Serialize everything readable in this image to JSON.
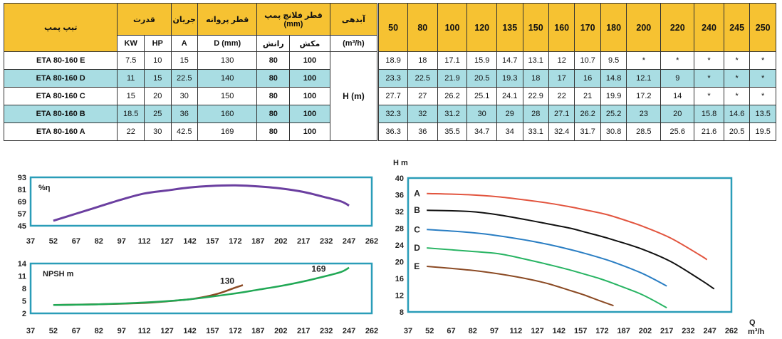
{
  "table": {
    "header": {
      "model": "تیپ پمپ",
      "power": "قدرت",
      "current": "جریان",
      "impeller": "قطر پروانه",
      "flange": "قطر فلانچ پمپ",
      "flange_unit": "(mm)",
      "flow": "آبدهی",
      "kw": "KW",
      "hp": "HP",
      "amp": "A",
      "dmm": "D (mm)",
      "discharge": "رانش",
      "suction": "مکش",
      "flow_unit": "(m³/h)",
      "h_label": "H (m)"
    },
    "flows": [
      "50",
      "80",
      "100",
      "120",
      "135",
      "150",
      "160",
      "170",
      "180",
      "200",
      "220",
      "240",
      "245",
      "250"
    ],
    "rows": [
      {
        "model": "ETA 80-160 E",
        "kw": "7.5",
        "hp": "10",
        "a": "15",
        "d": "130",
        "disc": "80",
        "suct": "100",
        "h": [
          "18.9",
          "18",
          "17.1",
          "15.9",
          "14.7",
          "13.1",
          "12",
          "10.7",
          "9.5",
          "*",
          "*",
          "*",
          "*",
          "*"
        ]
      },
      {
        "model": "ETA 80-160 D",
        "kw": "11",
        "hp": "15",
        "a": "22.5",
        "d": "140",
        "disc": "80",
        "suct": "100",
        "h": [
          "23.3",
          "22.5",
          "21.9",
          "20.5",
          "19.3",
          "18",
          "17",
          "16",
          "14.8",
          "12.1",
          "9",
          "*",
          "*",
          "*"
        ]
      },
      {
        "model": "ETA 80-160 C",
        "kw": "15",
        "hp": "20",
        "a": "30",
        "d": "150",
        "disc": "80",
        "suct": "100",
        "h": [
          "27.7",
          "27",
          "26.2",
          "25.1",
          "24.1",
          "22.9",
          "22",
          "21",
          "19.9",
          "17.2",
          "14",
          "*",
          "*",
          "*"
        ]
      },
      {
        "model": "ETA 80-160 B",
        "kw": "18.5",
        "hp": "25",
        "a": "36",
        "d": "160",
        "disc": "80",
        "suct": "100",
        "h": [
          "32.3",
          "32",
          "31.2",
          "30",
          "29",
          "28",
          "27.1",
          "26.2",
          "25.2",
          "23",
          "20",
          "15.8",
          "14.6",
          "13.5"
        ]
      },
      {
        "model": "ETA 80-160 A",
        "kw": "22",
        "hp": "30",
        "a": "42.5",
        "d": "169",
        "disc": "80",
        "suct": "100",
        "h": [
          "36.3",
          "36",
          "35.5",
          "34.7",
          "34",
          "33.1",
          "32.4",
          "31.7",
          "30.8",
          "28.5",
          "25.6",
          "21.6",
          "20.5",
          "19.5"
        ]
      }
    ]
  },
  "chart_data": [
    {
      "type": "line",
      "ylabel": "%η",
      "xlim": [
        37,
        262
      ],
      "ylim": [
        45,
        93
      ],
      "xticks": [
        "37",
        "52",
        "67",
        "82",
        "97",
        "112",
        "127",
        "142",
        "157",
        "172",
        "187",
        "202",
        "217",
        "232",
        "247",
        "262"
      ],
      "yticks": [
        "45",
        "57",
        "69",
        "81",
        "93"
      ],
      "series": [
        {
          "color": "#6b3fa0",
          "x": [
            52,
            67,
            82,
            97,
            112,
            127,
            142,
            157,
            172,
            187,
            202,
            217,
            232,
            242,
            247
          ],
          "y": [
            50,
            57,
            64,
            71,
            77,
            80,
            83,
            84.5,
            85,
            84,
            82,
            78.5,
            73,
            69,
            65
          ]
        }
      ]
    },
    {
      "type": "line",
      "ylabel": "NPSH m",
      "xlim": [
        37,
        262
      ],
      "ylim": [
        2,
        14
      ],
      "xticks": [
        "37",
        "52",
        "67",
        "82",
        "97",
        "112",
        "127",
        "142",
        "157",
        "172",
        "187",
        "202",
        "217",
        "232",
        "247",
        "262"
      ],
      "yticks": [
        "2",
        "5",
        "8",
        "11",
        "14"
      ],
      "series": [
        {
          "name": "130",
          "color": "#8b4a24",
          "x": [
            52,
            82,
            112,
            127,
            142,
            152,
            162,
            172,
            177
          ],
          "y": [
            4,
            4.2,
            4.5,
            4.9,
            5.4,
            6,
            6.9,
            8.2,
            8.8
          ]
        },
        {
          "name": "169",
          "color": "#21a855",
          "x": [
            52,
            82,
            112,
            142,
            172,
            187,
            202,
            217,
            232,
            242,
            247
          ],
          "y": [
            4,
            4.2,
            4.6,
            5.4,
            6.8,
            7.7,
            8.6,
            9.7,
            11,
            12,
            13
          ]
        }
      ]
    },
    {
      "type": "line",
      "ylabel": "H m",
      "xlabel": "Q",
      "xunit": "m³/h",
      "xlim": [
        37,
        262
      ],
      "ylim": [
        8,
        40
      ],
      "xticks": [
        "37",
        "52",
        "67",
        "82",
        "97",
        "112",
        "127",
        "142",
        "157",
        "172",
        "187",
        "202",
        "217",
        "232",
        "247",
        "262"
      ],
      "yticks": [
        "8",
        "12",
        "16",
        "20",
        "24",
        "28",
        "32",
        "36",
        "40"
      ],
      "series": [
        {
          "name": "A",
          "color": "#e2553f",
          "x": [
            50,
            80,
            100,
            120,
            135,
            150,
            160,
            170,
            180,
            200,
            220,
            240,
            245
          ],
          "y": [
            36.3,
            36,
            35.5,
            34.7,
            34,
            33.1,
            32.4,
            31.7,
            30.8,
            28.5,
            25.6,
            21.6,
            20.5
          ]
        },
        {
          "name": "B",
          "color": "#111111",
          "x": [
            50,
            80,
            100,
            120,
            135,
            150,
            160,
            170,
            180,
            200,
            220,
            240,
            250
          ],
          "y": [
            32.3,
            32,
            31.2,
            30,
            29,
            28,
            27.1,
            26.2,
            25.2,
            23,
            20,
            15.8,
            13.5
          ]
        },
        {
          "name": "C",
          "color": "#2a7ec3",
          "x": [
            50,
            80,
            100,
            120,
            135,
            150,
            160,
            170,
            180,
            200,
            217
          ],
          "y": [
            27.7,
            27,
            26.2,
            25.1,
            24.1,
            22.9,
            22,
            21,
            19.9,
            17.2,
            14.2
          ]
        },
        {
          "name": "D",
          "color": "#28b463",
          "x": [
            50,
            80,
            100,
            120,
            135,
            150,
            160,
            170,
            180,
            200,
            217
          ],
          "y": [
            23.3,
            22.5,
            21.9,
            20.5,
            19.3,
            18,
            17,
            16,
            14.8,
            12.1,
            9
          ]
        },
        {
          "name": "E",
          "color": "#8b4a24",
          "x": [
            50,
            80,
            100,
            120,
            135,
            150,
            160,
            170,
            180
          ],
          "y": [
            18.9,
            18,
            17.1,
            15.9,
            14.7,
            13.1,
            12,
            10.7,
            9.5
          ]
        }
      ]
    }
  ]
}
